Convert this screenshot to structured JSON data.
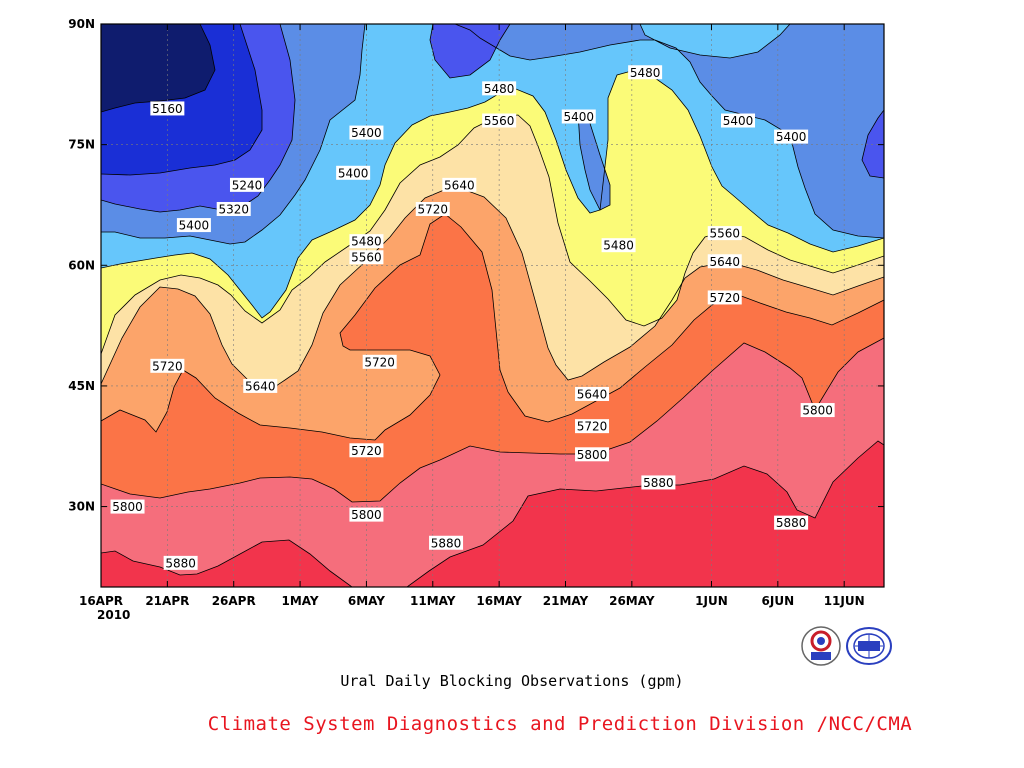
{
  "chart_data": {
    "type": "contour",
    "caption": "Ural Daily Blocking Observations (gpm)",
    "credit": "Climate System Diagnostics and Prediction Division /NCC/CMA",
    "year_label": "2010",
    "x_ticks": [
      "16APR",
      "21APR",
      "26APR",
      "1MAY",
      "6MAY",
      "11MAY",
      "16MAY",
      "21MAY",
      "26MAY",
      "1JUN",
      "6JUN",
      "11JUN"
    ],
    "y_ticks": [
      "30N",
      "45N",
      "60N",
      "75N",
      "90N"
    ],
    "contour_levels": [
      5160,
      5240,
      5320,
      5400,
      5480,
      5560,
      5640,
      5720,
      5800,
      5880
    ],
    "band_colors": [
      "#0f1c6e",
      "#1a2fd6",
      "#4a55ee",
      "#5b8de6",
      "#66c6fb",
      "#fbfb78",
      "#fde2a6",
      "#fca46a",
      "#fb7447",
      "#f56e7c",
      "#f2344c"
    ],
    "contour_labels": [
      {
        "text": "5160",
        "date": "2010-04-21",
        "lat": 79.5
      },
      {
        "text": "5240",
        "date": "2010-04-27",
        "lat": 70
      },
      {
        "text": "5320",
        "date": "2010-04-26",
        "lat": 67
      },
      {
        "text": "5400",
        "date": "2010-04-23",
        "lat": 65
      },
      {
        "text": "5400",
        "date": "2010-05-05",
        "lat": 71.5
      },
      {
        "text": "5400",
        "date": "2010-05-06",
        "lat": 76.5
      },
      {
        "text": "5480",
        "date": "2010-05-06",
        "lat": 63
      },
      {
        "text": "5560",
        "date": "2010-05-06",
        "lat": 61
      },
      {
        "text": "5720",
        "date": "2010-05-07",
        "lat": 48
      },
      {
        "text": "5720",
        "date": "2010-04-21",
        "lat": 47.5
      },
      {
        "text": "5640",
        "date": "2010-04-28",
        "lat": 45
      },
      {
        "text": "5720",
        "date": "2010-05-06",
        "lat": 37
      },
      {
        "text": "5800",
        "date": "2010-05-06",
        "lat": 29
      },
      {
        "text": "5800",
        "date": "2010-04-18",
        "lat": 30
      },
      {
        "text": "5880",
        "date": "2010-04-22",
        "lat": 23
      },
      {
        "text": "5880",
        "date": "2010-05-12",
        "lat": 25.5
      },
      {
        "text": "5720",
        "date": "2010-05-11",
        "lat": 67
      },
      {
        "text": "5640",
        "date": "2010-05-13",
        "lat": 70
      },
      {
        "text": "5560",
        "date": "2010-05-16",
        "lat": 78
      },
      {
        "text": "5480",
        "date": "2010-05-16",
        "lat": 82
      },
      {
        "text": "5400",
        "date": "2010-05-22",
        "lat": 78.5
      },
      {
        "text": "5480",
        "date": "2010-05-27",
        "lat": 84
      },
      {
        "text": "5480",
        "date": "2010-05-25",
        "lat": 62.5
      },
      {
        "text": "5640",
        "date": "2010-05-23",
        "lat": 44
      },
      {
        "text": "5720",
        "date": "2010-05-23",
        "lat": 40
      },
      {
        "text": "5800",
        "date": "2010-05-23",
        "lat": 36.5
      },
      {
        "text": "5880",
        "date": "2010-05-28",
        "lat": 33
      },
      {
        "text": "5400",
        "date": "2010-06-03",
        "lat": 78
      },
      {
        "text": "5400",
        "date": "2010-06-07",
        "lat": 76
      },
      {
        "text": "5560",
        "date": "2010-06-02",
        "lat": 64
      },
      {
        "text": "5640",
        "date": "2010-06-02",
        "lat": 60.5
      },
      {
        "text": "5720",
        "date": "2010-06-02",
        "lat": 56
      },
      {
        "text": "5800",
        "date": "2010-06-09",
        "lat": 42
      },
      {
        "text": "5880",
        "date": "2010-06-07",
        "lat": 28
      }
    ],
    "grid": true
  }
}
